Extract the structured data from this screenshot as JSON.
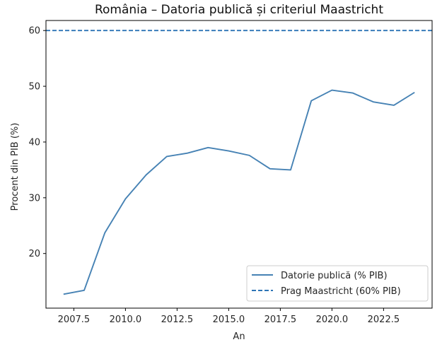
{
  "chart_data": {
    "type": "line",
    "title": "România – Datoria publică și criteriul Maastricht",
    "xlabel": "An",
    "ylabel": "Procent din PIB (%)",
    "xlim": [
      2006.15,
      2024.85
    ],
    "ylim": [
      10.2,
      61.8
    ],
    "xticks": [
      2007.5,
      2010.0,
      2012.5,
      2015.0,
      2017.5,
      2020.0,
      2022.5
    ],
    "xtick_labels": [
      "2007.5",
      "2010.0",
      "2012.5",
      "2015.0",
      "2017.5",
      "2020.0",
      "2022.5"
    ],
    "yticks": [
      20,
      30,
      40,
      50,
      60
    ],
    "ytick_labels": [
      "20",
      "30",
      "40",
      "50",
      "60"
    ],
    "grid": false,
    "legend_position": "lower-right",
    "series": [
      {
        "name": "Datorie publică (% PIB)",
        "style": "solid",
        "color": "#4682b4",
        "x": [
          2007,
          2008,
          2009,
          2010,
          2011,
          2012,
          2013,
          2014,
          2015,
          2016,
          2017,
          2018,
          2019,
          2020,
          2021,
          2022,
          2023,
          2024
        ],
        "y": [
          12.7,
          13.4,
          23.7,
          29.8,
          34.1,
          37.4,
          38.0,
          39.0,
          38.4,
          37.6,
          35.2,
          35.0,
          47.4,
          49.3,
          48.8,
          47.2,
          46.6,
          48.9
        ]
      },
      {
        "name": "Prag Maastricht (60% PIB)",
        "style": "dashed",
        "color": "#2e75b6",
        "x": [
          2006.15,
          2024.85
        ],
        "y": [
          60,
          60
        ]
      }
    ]
  }
}
